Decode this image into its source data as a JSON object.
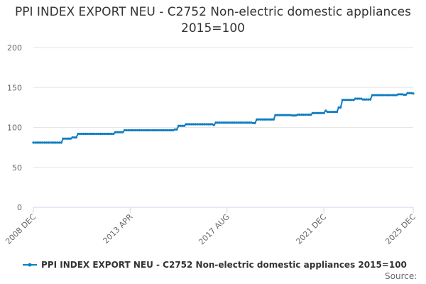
{
  "chart_data": {
    "type": "line",
    "title": "PPI INDEX EXPORT NEU - C2752 Non-electric domestic appliances 2015=100",
    "xlabel": "",
    "ylabel": "",
    "ylim": [
      0,
      200
    ],
    "yticks": [
      "0",
      "50",
      "100",
      "150",
      "200"
    ],
    "xticks": [
      {
        "label": "2008 DEC",
        "month": 0
      },
      {
        "label": "2013 APR",
        "month": 52
      },
      {
        "label": "2017 AUG",
        "month": 104
      },
      {
        "label": "2021 DEC",
        "month": 156
      },
      {
        "label": "2025 DEC",
        "month": 204
      }
    ],
    "series": [
      {
        "name": "PPI INDEX EXPORT NEU - C2752 Non-electric domestic appliances 2015=100",
        "color": "#0e7dc2",
        "steps": [
          [
            0,
            81
          ],
          [
            16,
            86
          ],
          [
            21,
            87.5
          ],
          [
            24,
            92
          ],
          [
            44,
            94
          ],
          [
            49,
            96.5
          ],
          [
            76,
            97.5
          ],
          [
            78,
            102
          ],
          [
            82,
            104
          ],
          [
            97,
            103
          ],
          [
            98,
            106
          ],
          [
            118,
            105.5
          ],
          [
            120,
            110
          ],
          [
            130,
            115.5
          ],
          [
            139,
            115
          ],
          [
            142,
            116
          ],
          [
            150,
            118
          ],
          [
            157,
            121
          ],
          [
            158,
            119.5
          ],
          [
            164,
            125
          ],
          [
            166,
            134.5
          ],
          [
            173,
            136
          ],
          [
            177,
            135
          ],
          [
            182,
            140.5
          ],
          [
            196,
            141.5
          ],
          [
            199,
            141
          ],
          [
            201,
            143
          ],
          [
            204,
            142.5
          ]
        ]
      }
    ],
    "legend": "bottom",
    "grid": true
  },
  "source_label": "Source:"
}
